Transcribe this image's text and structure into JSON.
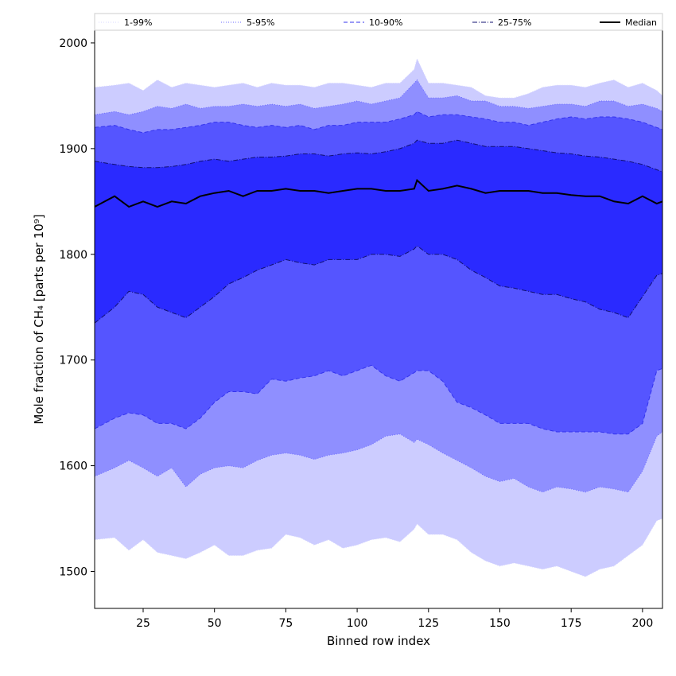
{
  "chart_data": {
    "type": "area",
    "xlabel": "Binned row index",
    "ylabel": "Mole fraction of CH₄ [parts per 10⁹]",
    "xlim": [
      8,
      207
    ],
    "ylim": [
      1465,
      2012
    ],
    "xticks": [
      25,
      50,
      75,
      100,
      125,
      150,
      175,
      200
    ],
    "yticks": [
      1500,
      1600,
      1700,
      1800,
      1900,
      2000
    ],
    "legend_position": "top, spanning full width (horizontal)",
    "grid": false,
    "bands": [
      {
        "name": "1-99%",
        "fill": "#ccccff",
        "line_color": "#d8d8ff",
        "line_style": "dotted"
      },
      {
        "name": "5-95%",
        "fill": "#8f8fff",
        "line_color": "#6a6aff",
        "line_style": "dotted"
      },
      {
        "name": "10-90%",
        "fill": "#5555ff",
        "line_color": "#3333ee",
        "line_style": "dashed"
      },
      {
        "name": "25-75%",
        "fill": "#2a2aff",
        "line_color": "#101070",
        "line_style": "dash-dot"
      }
    ],
    "median": {
      "name": "Median",
      "color": "#000000"
    },
    "x": [
      8,
      15,
      20,
      25,
      30,
      35,
      40,
      45,
      50,
      55,
      60,
      65,
      70,
      75,
      80,
      85,
      90,
      95,
      100,
      105,
      110,
      115,
      120,
      121,
      125,
      130,
      135,
      140,
      145,
      150,
      155,
      160,
      165,
      170,
      175,
      180,
      185,
      190,
      195,
      200,
      205,
      207
    ],
    "series": [
      {
        "name": "p1",
        "values": [
          1530,
          1532,
          1520,
          1530,
          1518,
          1515,
          1512,
          1518,
          1525,
          1515,
          1515,
          1520,
          1522,
          1535,
          1532,
          1525,
          1530,
          1522,
          1525,
          1530,
          1532,
          1528,
          1540,
          1545,
          1535,
          1535,
          1530,
          1518,
          1510,
          1505,
          1508,
          1505,
          1502,
          1505,
          1500,
          1495,
          1502,
          1505,
          1515,
          1525,
          1548,
          1550
        ]
      },
      {
        "name": "p5",
        "values": [
          1590,
          1598,
          1605,
          1598,
          1590,
          1598,
          1580,
          1592,
          1598,
          1600,
          1598,
          1605,
          1610,
          1612,
          1610,
          1606,
          1610,
          1612,
          1615,
          1620,
          1628,
          1630,
          1622,
          1625,
          1620,
          1612,
          1605,
          1598,
          1590,
          1585,
          1588,
          1580,
          1575,
          1580,
          1578,
          1575,
          1580,
          1578,
          1575,
          1595,
          1628,
          1632
        ]
      },
      {
        "name": "p10",
        "values": [
          1635,
          1645,
          1650,
          1648,
          1640,
          1640,
          1635,
          1645,
          1660,
          1670,
          1670,
          1668,
          1682,
          1680,
          1683,
          1685,
          1690,
          1685,
          1690,
          1695,
          1685,
          1680,
          1688,
          1690,
          1690,
          1680,
          1660,
          1655,
          1648,
          1640,
          1640,
          1640,
          1635,
          1632,
          1632,
          1632,
          1632,
          1630,
          1630,
          1640,
          1690,
          1692
        ]
      },
      {
        "name": "p25",
        "values": [
          1735,
          1750,
          1765,
          1762,
          1750,
          1745,
          1740,
          1750,
          1760,
          1772,
          1778,
          1785,
          1790,
          1795,
          1792,
          1790,
          1795,
          1795,
          1795,
          1800,
          1800,
          1798,
          1805,
          1808,
          1800,
          1800,
          1795,
          1785,
          1778,
          1770,
          1768,
          1765,
          1762,
          1762,
          1758,
          1755,
          1748,
          1745,
          1740,
          1760,
          1780,
          1782
        ]
      },
      {
        "name": "p75",
        "values": [
          1888,
          1885,
          1883,
          1882,
          1882,
          1883,
          1885,
          1888,
          1890,
          1888,
          1890,
          1892,
          1892,
          1893,
          1895,
          1895,
          1893,
          1895,
          1896,
          1895,
          1897,
          1900,
          1905,
          1908,
          1905,
          1905,
          1908,
          1905,
          1902,
          1902,
          1902,
          1900,
          1898,
          1896,
          1895,
          1893,
          1892,
          1890,
          1888,
          1885,
          1880,
          1878
        ]
      },
      {
        "name": "p90",
        "values": [
          1920,
          1922,
          1918,
          1915,
          1918,
          1918,
          1920,
          1922,
          1925,
          1925,
          1922,
          1920,
          1922,
          1920,
          1922,
          1918,
          1922,
          1922,
          1925,
          1925,
          1925,
          1928,
          1932,
          1935,
          1930,
          1932,
          1932,
          1930,
          1928,
          1925,
          1925,
          1922,
          1925,
          1928,
          1930,
          1928,
          1930,
          1930,
          1928,
          1925,
          1920,
          1918
        ]
      },
      {
        "name": "p95",
        "values": [
          1932,
          1935,
          1932,
          1935,
          1940,
          1938,
          1942,
          1938,
          1940,
          1940,
          1942,
          1940,
          1942,
          1940,
          1942,
          1938,
          1940,
          1942,
          1945,
          1942,
          1945,
          1948,
          1962,
          1965,
          1948,
          1948,
          1950,
          1945,
          1945,
          1940,
          1940,
          1938,
          1940,
          1942,
          1942,
          1940,
          1945,
          1945,
          1940,
          1942,
          1938,
          1935
        ]
      },
      {
        "name": "p99",
        "values": [
          1958,
          1960,
          1962,
          1955,
          1965,
          1958,
          1962,
          1960,
          1958,
          1960,
          1962,
          1958,
          1962,
          1960,
          1960,
          1958,
          1962,
          1962,
          1960,
          1958,
          1962,
          1962,
          1975,
          1985,
          1962,
          1962,
          1960,
          1958,
          1950,
          1948,
          1948,
          1952,
          1958,
          1960,
          1960,
          1958,
          1962,
          1965,
          1958,
          1962,
          1955,
          1950
        ]
      },
      {
        "name": "Median",
        "values": [
          1845,
          1855,
          1845,
          1850,
          1845,
          1850,
          1848,
          1855,
          1858,
          1860,
          1855,
          1860,
          1860,
          1862,
          1860,
          1860,
          1858,
          1860,
          1862,
          1862,
          1860,
          1860,
          1862,
          1870,
          1860,
          1862,
          1865,
          1862,
          1858,
          1860,
          1860,
          1860,
          1858,
          1858,
          1856,
          1855,
          1855,
          1850,
          1848,
          1855,
          1848,
          1850
        ]
      }
    ]
  }
}
